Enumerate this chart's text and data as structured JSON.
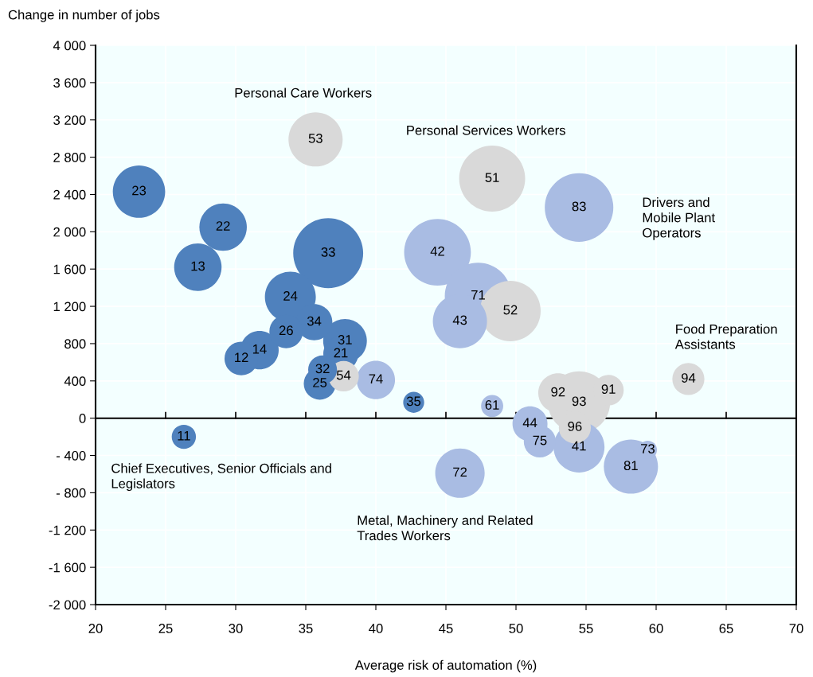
{
  "chart_data": {
    "type": "bubble",
    "xlabel": "Average risk of automation (%)",
    "ylabel": "Change in number of jobs",
    "xlim": [
      20,
      70
    ],
    "xticks": [
      20,
      25,
      30,
      35,
      40,
      45,
      50,
      55,
      60,
      65,
      70
    ],
    "ylim": [
      -2000,
      4000
    ],
    "yticks": [
      {
        "value": -2000,
        "label": "-2 000"
      },
      {
        "value": -1600,
        "label": "-1 600"
      },
      {
        "value": -1200,
        "label": "-1 200"
      },
      {
        "value": -800,
        "label": "- 800"
      },
      {
        "value": -400,
        "label": "- 400"
      },
      0,
      {
        "value": 400,
        "label": "400"
      },
      {
        "value": 800,
        "label": "800"
      },
      {
        "value": 1200,
        "label": "1 200"
      },
      {
        "value": 1600,
        "label": "1 600"
      },
      {
        "value": 2000,
        "label": "2 000"
      },
      {
        "value": 2400,
        "label": "2 400"
      },
      {
        "value": 2800,
        "label": "2 800"
      },
      {
        "value": 3200,
        "label": "3 200"
      },
      {
        "value": 3600,
        "label": "3 600"
      },
      {
        "value": 4000,
        "label": "4 000"
      }
    ],
    "grid": true,
    "legend": false,
    "ref_lines": [
      {
        "axis": "y",
        "value": 0,
        "color": "#000000"
      }
    ],
    "series": [
      {
        "color": "#4f81bd",
        "x": [
          23.1,
          29.1,
          27.3,
          36.6,
          33.9,
          33.6,
          35.6,
          37.8,
          37.5,
          30.4,
          31.7,
          36.2,
          36.0,
          42.7,
          26.3
        ],
        "values": [
          2430,
          2050,
          1620,
          1770,
          1300,
          930,
          1030,
          830,
          690,
          640,
          730,
          520,
          370,
          170,
          -200
        ],
        "sizes": [
          0.56,
          0.46,
          0.46,
          1,
          0.53,
          0.23,
          0.27,
          0.39,
          0.25,
          0.23,
          0.3,
          0.17,
          0.21,
          0.09,
          0.12
        ]
      },
      {
        "color": "#a9bce3",
        "x": [
          40.0,
          44.4,
          47.3,
          46.0,
          54.5,
          48.3,
          46.0,
          51.7,
          51.0,
          54.5,
          58.2,
          59.4
        ],
        "values": [
          410,
          1780,
          1310,
          1040,
          2260,
          130,
          -590,
          -250,
          -60,
          -310,
          -520,
          -340
        ],
        "sizes": [
          0.3,
          0.91,
          0.91,
          0.6,
          0.96,
          0.1,
          0.5,
          0.21,
          0.25,
          0.53,
          0.6,
          0.07
        ]
      },
      {
        "color": "#d9d9d9",
        "x": [
          35.7,
          48.3,
          49.6,
          37.7,
          62.3,
          56.6,
          54.5,
          53.0,
          54.2
        ],
        "values": [
          2990,
          2570,
          1150,
          450,
          420,
          300,
          170,
          270,
          -100
        ],
        "sizes": [
          0.6,
          0.89,
          0.75,
          0.19,
          0.21,
          0.19,
          0.79,
          0.32,
          0.21
        ]
      }
    ],
    "annotations": [
      {
        "text": "23",
        "x": 23.1,
        "y": 2430
      },
      {
        "text": "22",
        "x": 29.1,
        "y": 2050
      },
      {
        "text": "13",
        "x": 27.3,
        "y": 1620
      },
      {
        "text": "33",
        "x": 36.6,
        "y": 1770
      },
      {
        "text": "24",
        "x": 33.9,
        "y": 1300
      },
      {
        "text": "26",
        "x": 33.6,
        "y": 930
      },
      {
        "text": "34",
        "x": 35.6,
        "y": 1030
      },
      {
        "text": "31",
        "x": 37.8,
        "y": 830
      },
      {
        "text": "21",
        "x": 37.5,
        "y": 690
      },
      {
        "text": "12",
        "x": 30.4,
        "y": 640
      },
      {
        "text": "14",
        "x": 31.7,
        "y": 730
      },
      {
        "text": "32",
        "x": 36.2,
        "y": 520
      },
      {
        "text": "25",
        "x": 36.0,
        "y": 370
      },
      {
        "text": "35",
        "x": 42.7,
        "y": 170
      },
      {
        "text": "11",
        "x": 26.3,
        "y": -200
      },
      {
        "text": "74",
        "x": 40.0,
        "y": 410
      },
      {
        "text": "42",
        "x": 44.4,
        "y": 1780
      },
      {
        "text": "71",
        "x": 47.3,
        "y": 1310
      },
      {
        "text": "43",
        "x": 46.0,
        "y": 1040
      },
      {
        "text": "83",
        "x": 54.5,
        "y": 2260
      },
      {
        "text": "61",
        "x": 48.3,
        "y": 130
      },
      {
        "text": "72",
        "x": 46.0,
        "y": -590
      },
      {
        "text": "75",
        "x": 51.7,
        "y": -250
      },
      {
        "text": "44",
        "x": 51.0,
        "y": -60
      },
      {
        "text": "41",
        "x": 54.5,
        "y": -310
      },
      {
        "text": "81",
        "x": 58.2,
        "y": -520
      },
      {
        "text": "73",
        "x": 59.4,
        "y": -340
      },
      {
        "text": "53",
        "x": 35.7,
        "y": 2990
      },
      {
        "text": "51",
        "x": 48.3,
        "y": 2570
      },
      {
        "text": "52",
        "x": 49.6,
        "y": 1150
      },
      {
        "text": "54",
        "x": 37.7,
        "y": 450
      },
      {
        "text": "94",
        "x": 62.3,
        "y": 420
      },
      {
        "text": "91",
        "x": 56.6,
        "y": 300
      },
      {
        "text": "93",
        "x": 54.5,
        "y": 170
      },
      {
        "text": "92",
        "x": 53.0,
        "y": 270
      },
      {
        "text": "96",
        "x": 54.2,
        "y": -100
      },
      "Personal Care Workers",
      "Personal Services Workers",
      "Drivers and\nMobile Plant\nOperators",
      "Food Preparation\nAssistants",
      "Chief Executives, Senior Officials and\nLegislators",
      "Metal, Machinery and Related\nTrades Workers"
    ]
  }
}
